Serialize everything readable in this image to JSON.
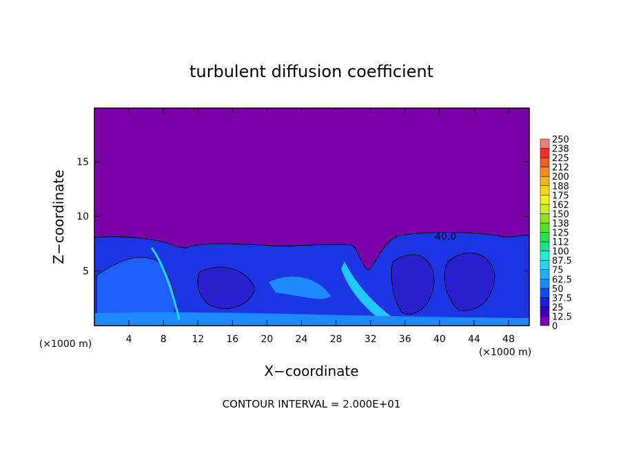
{
  "chart_data": {
    "type": "contour",
    "title": "turbulent diffusion coefficient",
    "xlabel": "X−coordinate",
    "ylabel": "Z−coordinate",
    "xunit": "(×1000 m)",
    "subtitle": "CONTOUR INTERVAL = 2.000E+01",
    "contour_label": "40.0",
    "xlim": [
      0,
      50.4
    ],
    "ylim": [
      0,
      19.9
    ],
    "xticks": [
      4,
      8,
      12,
      16,
      20,
      24,
      28,
      32,
      36,
      40,
      44,
      48
    ],
    "yticks": [
      5,
      10,
      15
    ],
    "colorbar": {
      "levels": [
        0,
        12.5,
        25,
        37.5,
        50,
        62.5,
        75,
        87.5,
        100,
        {
          "value": 112.5,
          "label": "112"
        },
        125,
        {
          "value": 137.5,
          "label": "138"
        },
        150,
        {
          "value": 162.5,
          "label": "162"
        },
        175,
        {
          "value": 187.5,
          "label": "188"
        },
        200,
        {
          "value": 212.5,
          "label": "212"
        },
        225,
        {
          "value": 237.5,
          "label": "238"
        },
        250
      ],
      "colors": [
        "#7a00a8",
        "#3a00c0",
        "#1c1ce0",
        "#1448ff",
        "#1e88ff",
        "#20b0ff",
        "#20d8ff",
        "#20f0d0",
        "#20e090",
        "#28e050",
        "#50e020",
        "#90e020",
        "#c8f020",
        "#f0f020",
        "#f0d820",
        "#f0b420",
        "#f09020",
        "#f06020",
        "#f03020",
        "#f08080"
      ]
    }
  }
}
